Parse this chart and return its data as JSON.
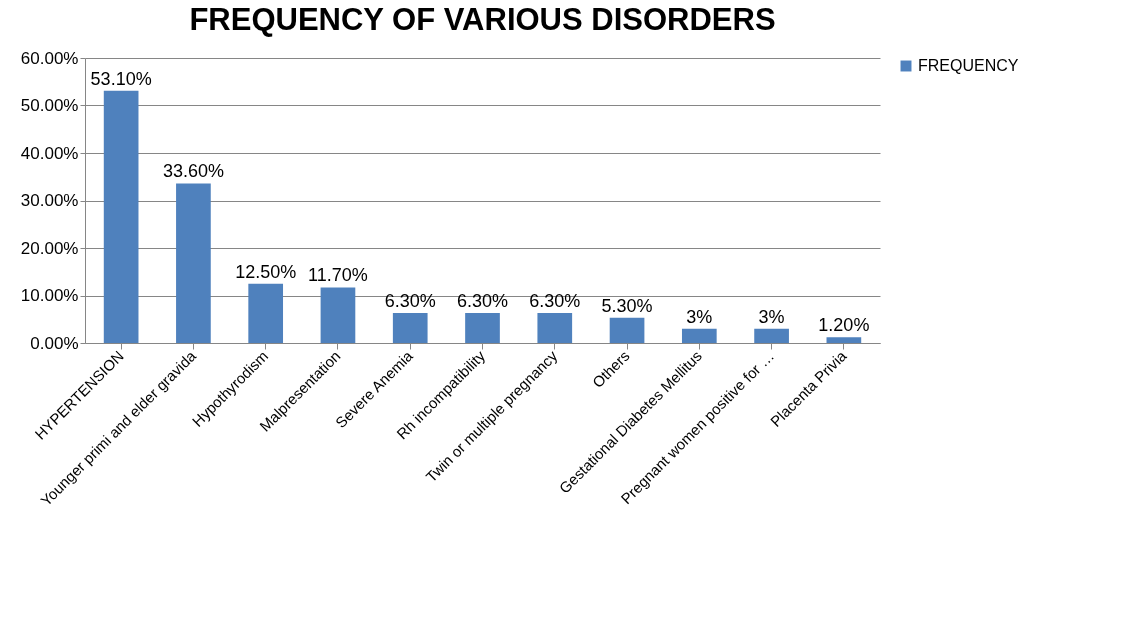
{
  "chart_data": {
    "type": "bar",
    "title": "FREQUENCY OF VARIOUS DISORDERS",
    "categories": [
      "HYPERTENSION",
      "Younger primi and elder gravida",
      "Hypothyrodism",
      "Malpresentation",
      "Severe Anemia",
      "Rh incompatibility",
      "Twin or multiple pregnancy",
      "Others",
      "Gestational Diabetes Mellitus",
      "Pregnant women positive for …",
      "Placenta Privia"
    ],
    "series": [
      {
        "name": "FREQUENCY",
        "color": "#4f81bd",
        "values": [
          53.1,
          33.6,
          12.5,
          11.7,
          6.3,
          6.3,
          6.3,
          5.3,
          3,
          3,
          1.2
        ]
      }
    ],
    "value_labels": [
      "53.10%",
      "33.60%",
      "12.50%",
      "11.70%",
      "6.30%",
      "6.30%",
      "6.30%",
      "5.30%",
      "3%",
      "3%",
      "1.20%"
    ],
    "ylim": [
      0,
      60
    ],
    "yticks": [
      {
        "value": 0,
        "label": "0.00%"
      },
      {
        "value": 10,
        "label": "10.00%"
      },
      {
        "value": 20,
        "label": "20.00%"
      },
      {
        "value": 30,
        "label": "30.00%"
      },
      {
        "value": 40,
        "label": "40.00%"
      },
      {
        "value": 50,
        "label": "50.00%"
      },
      {
        "value": 60,
        "label": "60.00%"
      }
    ],
    "grid": "y",
    "legend": "right"
  }
}
